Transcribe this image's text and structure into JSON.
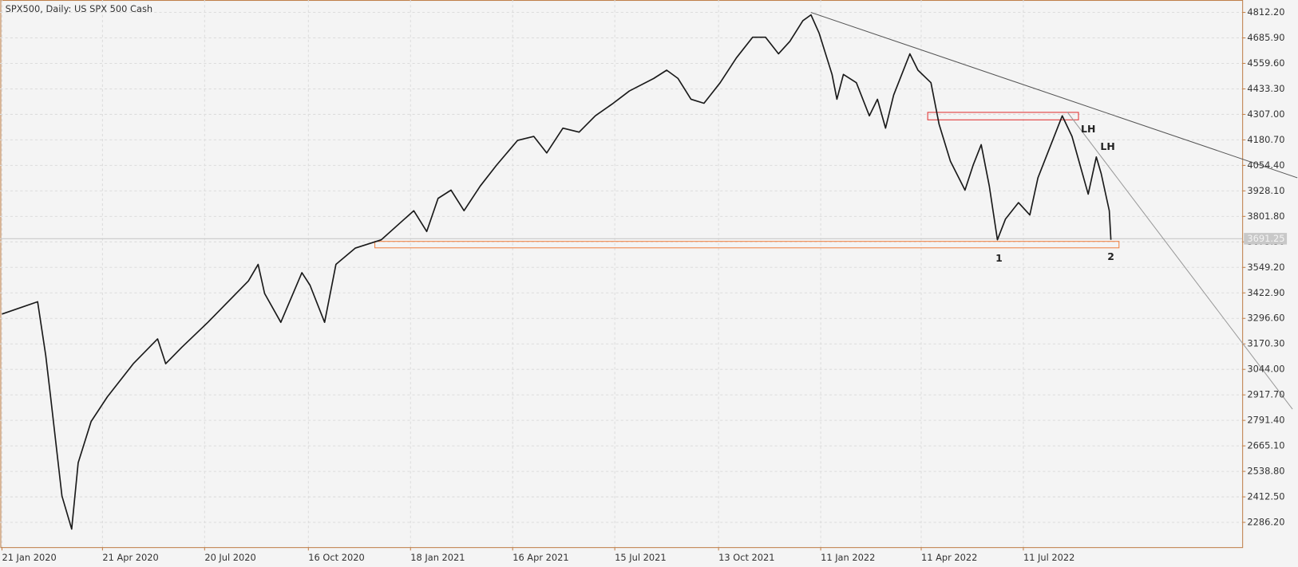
{
  "chart_data": {
    "type": "line",
    "title": "SPX500, Daily:  US SPX 500 Cash",
    "xlim": [
      -1,
      765
    ],
    "ylim": [
      2163.4,
      4873.6
    ],
    "xticks": [
      {
        "value": 0,
        "label": "21 Jan 2020"
      },
      {
        "value": 62,
        "label": "21 Apr 2020"
      },
      {
        "value": 125,
        "label": "20 Jul 2020"
      },
      {
        "value": 189,
        "label": "16 Oct 2020"
      },
      {
        "value": 252,
        "label": "18 Jan 2021"
      },
      {
        "value": 315,
        "label": "16 Apr 2021"
      },
      {
        "value": 378,
        "label": "15 Jul 2021"
      },
      {
        "value": 442,
        "label": "13 Oct 2021"
      },
      {
        "value": 505,
        "label": "11 Jan 2022"
      },
      {
        "value": 567,
        "label": "11 Apr 2022"
      },
      {
        "value": 630,
        "label": "11 Jul 2022"
      }
    ],
    "yticks": [
      {
        "value": 4812.2,
        "label": "4812.20"
      },
      {
        "value": 4685.9,
        "label": "4685.90"
      },
      {
        "value": 4559.6,
        "label": "4559.60"
      },
      {
        "value": 4433.3,
        "label": "4433.30"
      },
      {
        "value": 4307.0,
        "label": "4307.00"
      },
      {
        "value": 4180.7,
        "label": "4180.70"
      },
      {
        "value": 4054.4,
        "label": "4054.40"
      },
      {
        "value": 3928.1,
        "label": "3928.10"
      },
      {
        "value": 3801.8,
        "label": "3801.80"
      },
      {
        "value": 3675.5,
        "label": "3675.50"
      },
      {
        "value": 3549.2,
        "label": "3549.20"
      },
      {
        "value": 3422.9,
        "label": "3422.90"
      },
      {
        "value": 3296.6,
        "label": "3296.60"
      },
      {
        "value": 3170.3,
        "label": "3170.30"
      },
      {
        "value": 3044.0,
        "label": "3044.00"
      },
      {
        "value": 2917.7,
        "label": "2917.70"
      },
      {
        "value": 2791.4,
        "label": "2791.40"
      },
      {
        "value": 2665.1,
        "label": "2665.10"
      },
      {
        "value": 2538.8,
        "label": "2538.80"
      },
      {
        "value": 2412.5,
        "label": "2412.50"
      },
      {
        "value": 2286.2,
        "label": "2286.20"
      }
    ],
    "grid": true,
    "current_price": 3691.25,
    "x": [
      0,
      22,
      27,
      30,
      37,
      43,
      47,
      55,
      65,
      81,
      96,
      101,
      111,
      127,
      137,
      152,
      158,
      162,
      172,
      185,
      190,
      199,
      206,
      218,
      234,
      254,
      262,
      269,
      277,
      285,
      295,
      305,
      318,
      328,
      336,
      346,
      356,
      366,
      377,
      387,
      402,
      410,
      417,
      425,
      433,
      443,
      453,
      463,
      471,
      479,
      486,
      494,
      499,
      504,
      512,
      515,
      519,
      527,
      535,
      540,
      545,
      550,
      555,
      560,
      565,
      573,
      578,
      585,
      594,
      599,
      604,
      609,
      614,
      619,
      627,
      634,
      639,
      647,
      654,
      660,
      665,
      670,
      675,
      678,
      683,
      684
    ],
    "series": [
      {
        "color": "#1a1a1a",
        "values": [
          3318,
          3379,
          3113,
          2908,
          2417,
          2253,
          2581,
          2786,
          2908,
          3072,
          3195,
          3072,
          3154,
          3277,
          3359,
          3482,
          3564,
          3420,
          3277,
          3523,
          3461,
          3277,
          3564,
          3645,
          3686,
          3830,
          3727,
          3891,
          3932,
          3830,
          3952,
          4055,
          4178,
          4198,
          4116,
          4239,
          4219,
          4300,
          4362,
          4423,
          4485,
          4526,
          4485,
          4382,
          4362,
          4464,
          4587,
          4689,
          4689,
          4607,
          4669,
          4771,
          4800,
          4710,
          4505,
          4382,
          4505,
          4464,
          4300,
          4382,
          4239,
          4403,
          4505,
          4607,
          4526,
          4464,
          4259,
          4075,
          3932,
          4055,
          4157,
          3952,
          3686,
          3789,
          3870,
          3809,
          3993,
          4157,
          4300,
          4198,
          4055,
          3912,
          4096,
          4014,
          3830,
          3686
        ]
      }
    ],
    "trendlines": [
      {
        "color": "#555555",
        "x": [
          499,
          799
        ],
        "y": [
          4812,
          3993
        ]
      },
      {
        "color": "#999999",
        "x": [
          657,
          796
        ],
        "y": [
          4320,
          2847
        ]
      }
    ],
    "zones": [
      {
        "color": "#e03030",
        "x": [
          571,
          664
        ],
        "y": [
          4317,
          4280
        ]
      },
      {
        "color": "#f08040",
        "x": [
          230,
          689
        ],
        "y": [
          3678,
          3646
        ]
      }
    ],
    "annotations": [
      {
        "text": "LH",
        "x": 670,
        "y": 4231
      },
      {
        "text": "LH",
        "x": 682,
        "y": 4145
      },
      {
        "text": "1",
        "x": 615,
        "y": 3592
      },
      {
        "text": "2",
        "x": 684,
        "y": 3600
      }
    ]
  }
}
